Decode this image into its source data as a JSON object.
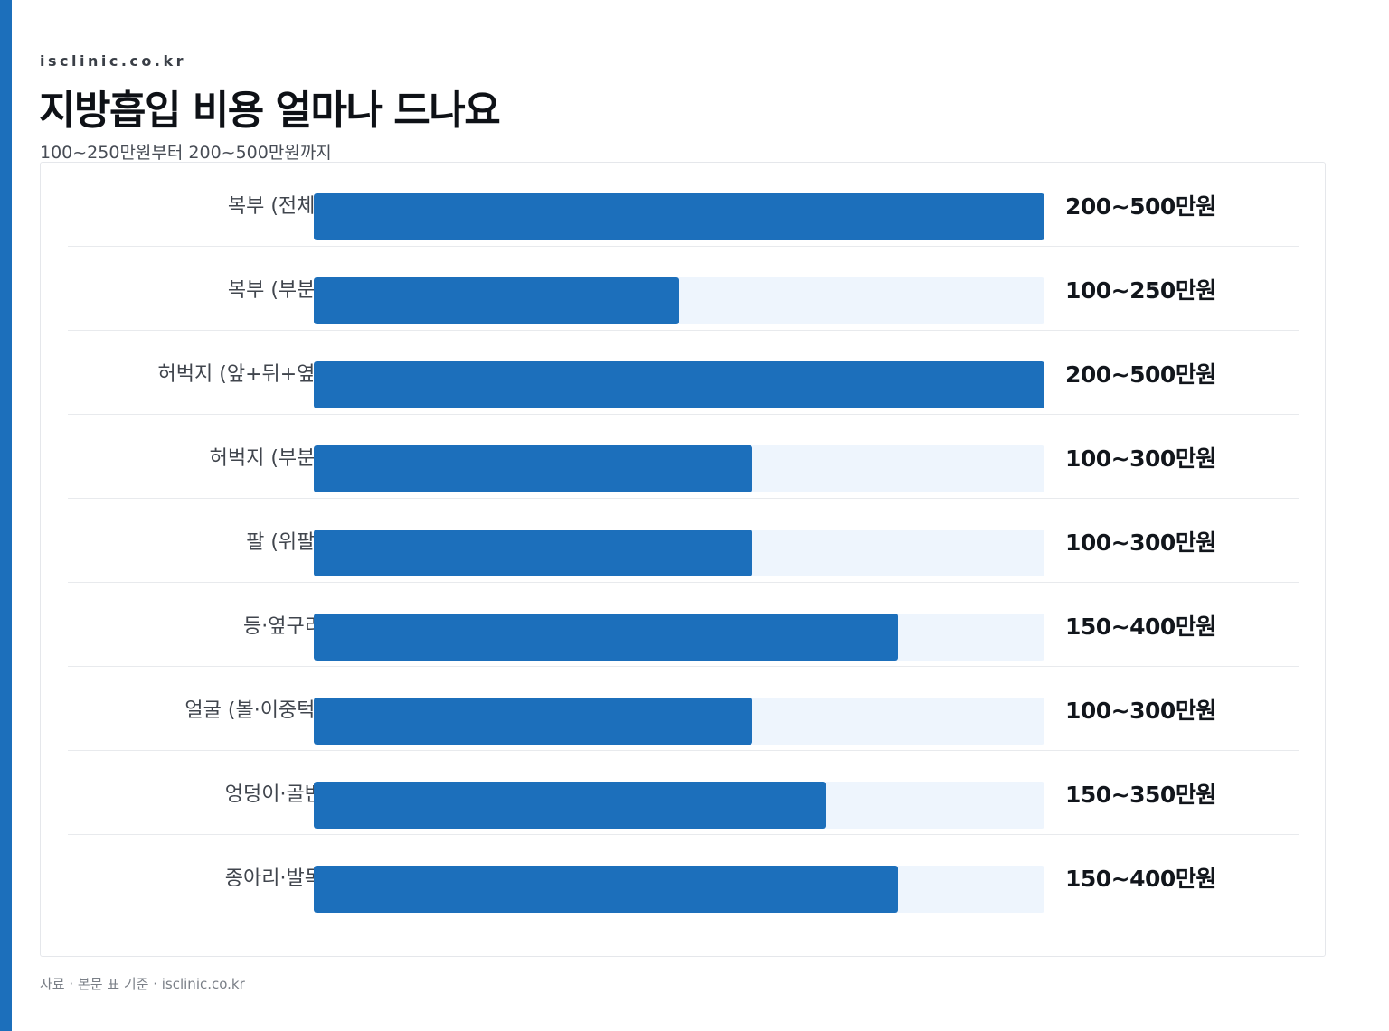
{
  "header": {
    "site": "isclinic.co.kr",
    "title": "지방흡입 비용 얼마나 드나요",
    "subtitle": "100~250만원부터 200~500만원까지"
  },
  "footer": {
    "source": "자료 · 본문 표 기준 · isclinic.co.kr"
  },
  "colors": {
    "accent": "#1c6fbb",
    "track": "#eef5fd"
  },
  "chart_data": {
    "type": "bar",
    "orientation": "horizontal",
    "title": "지방흡입 비용 얼마나 드나요",
    "subtitle": "100~250만원부터 200~500만원까지",
    "xlim": [
      0,
      500
    ],
    "unit": "만원",
    "grid": false,
    "categories": [
      "복부 (전체)",
      "복부 (부분)",
      "허벅지 (앞+뒤+옆)",
      "허벅지 (부분)",
      "팔 (위팔)",
      "등·옆구리",
      "얼굴 (볼·이중턱)",
      "엉덩이·골반",
      "종아리·발목"
    ],
    "ranges": [
      [
        200,
        500
      ],
      [
        100,
        250
      ],
      [
        200,
        500
      ],
      [
        100,
        300
      ],
      [
        100,
        300
      ],
      [
        150,
        400
      ],
      [
        100,
        300
      ],
      [
        150,
        350
      ],
      [
        150,
        400
      ]
    ],
    "values": [
      500,
      250,
      500,
      300,
      300,
      400,
      300,
      350,
      400
    ],
    "data_labels": [
      "200~500만원",
      "100~250만원",
      "200~500만원",
      "100~300만원",
      "100~300만원",
      "150~400만원",
      "100~300만원",
      "150~350만원",
      "150~400만원"
    ]
  }
}
